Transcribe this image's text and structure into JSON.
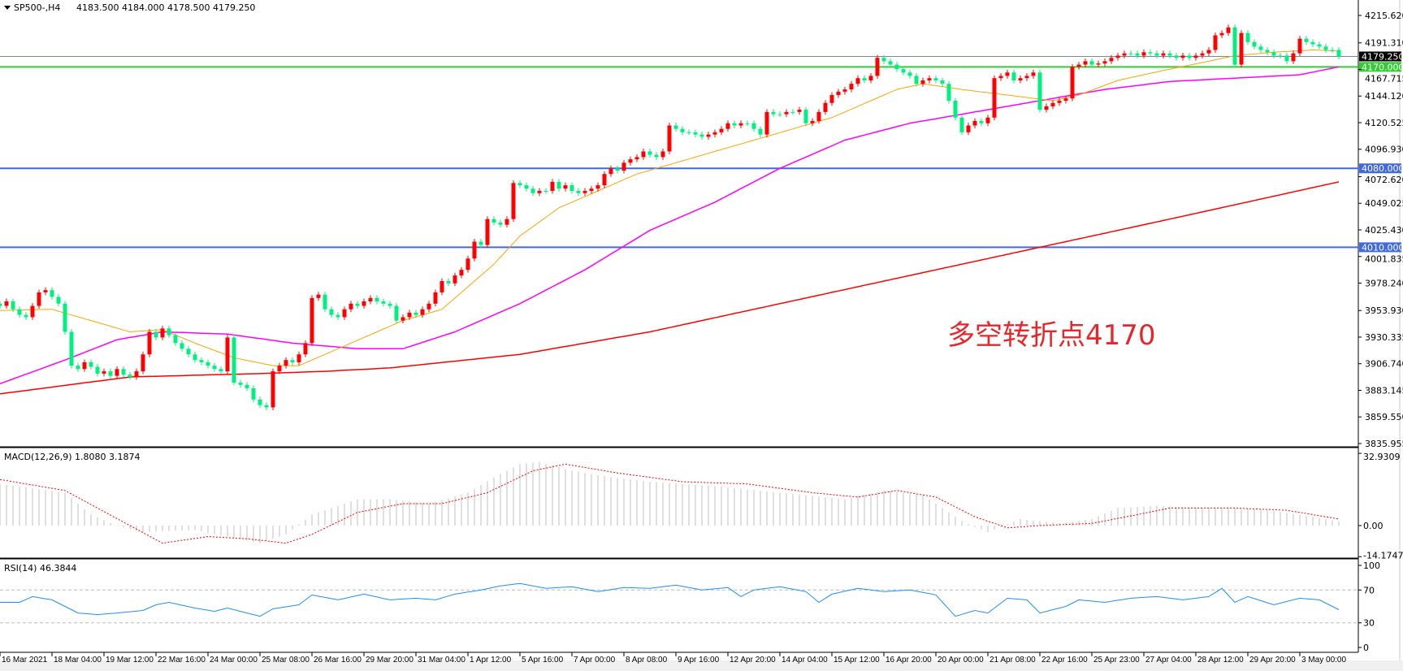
{
  "header": {
    "symbol": "SP500-,H4",
    "ohlc": "4183.500 4184.000 4178.500 4179.250"
  },
  "annotation": "多空转折点4170",
  "colors": {
    "bull": "#ff0000",
    "bear": "#00f080",
    "ma_fast": "#ffa500",
    "ma_mid": "#ff00ff",
    "ma_slow": "#ff0000",
    "level_green": "#32cd32",
    "level_blue": "#4169e1",
    "bid_line": "#778899",
    "macd_hist": "#c0c0c0",
    "macd_signal": "#ff0000",
    "rsi": "#1e90ff"
  },
  "chart_data": [
    {
      "type": "candlestick",
      "title": "SP500-,H4",
      "price_axis_ticks": [
        "4215.620",
        "4191.310",
        "4167.715",
        "4144.120",
        "4120.525",
        "4096.930",
        "4072.620",
        "4049.025",
        "4025.430",
        "4001.835",
        "3978.240",
        "3953.930",
        "3930.335",
        "3906.740",
        "3883.145",
        "3859.550",
        "3835.955"
      ],
      "ylim": [
        3835.955,
        4215.62
      ],
      "time_axis_labels": [
        "16 Mar 2021",
        "18 Mar 04:00",
        "19 Mar 12:00",
        "22 Mar 16:00",
        "24 Mar 00:00",
        "25 Mar 08:00",
        "26 Mar 16:00",
        "29 Mar 20:00",
        "31 Mar 04:00",
        "1 Apr 12:00",
        "5 Apr 16:00",
        "7 Apr 00:00",
        "8 Apr 08:00",
        "9 Apr 16:00",
        "12 Apr 20:00",
        "14 Apr 04:00",
        "15 Apr 12:00",
        "16 Apr 20:00",
        "20 Apr 00:00",
        "21 Apr 08:00",
        "22 Apr 16:00",
        "25 Apr 23:00",
        "27 Apr 04:00",
        "28 Apr 12:00",
        "29 Apr 20:00",
        "3 May 00:00"
      ],
      "close": [
        3958,
        3962,
        3955,
        3950,
        3948,
        3958,
        3970,
        3972,
        3966,
        3960,
        3935,
        3905,
        3902,
        3908,
        3904,
        3898,
        3900,
        3896,
        3902,
        3897,
        3895,
        3900,
        3915,
        3935,
        3930,
        3938,
        3932,
        3925,
        3920,
        3915,
        3910,
        3908,
        3905,
        3902,
        3900,
        3930,
        3890,
        3888,
        3885,
        3875,
        3870,
        3868,
        3900,
        3905,
        3910,
        3908,
        3915,
        3925,
        3965,
        3968,
        3955,
        3950,
        3948,
        3955,
        3960,
        3958,
        3962,
        3965,
        3962,
        3960,
        3958,
        3945,
        3948,
        3952,
        3950,
        3955,
        3960,
        3970,
        3980,
        3978,
        3985,
        3990,
        4000,
        4015,
        4012,
        4035,
        4032,
        4030,
        4035,
        4067,
        4065,
        4062,
        4058,
        4060,
        4060,
        4068,
        4062,
        4065,
        4060,
        4058,
        4060,
        4062,
        4065,
        4075,
        4080,
        4078,
        4085,
        4088,
        4090,
        4095,
        4092,
        4090,
        4095,
        4118,
        4115,
        4112,
        4112,
        4110,
        4108,
        4110,
        4112,
        4115,
        4120,
        4118,
        4120,
        4120,
        4115,
        4110,
        4130,
        4128,
        4128,
        4130,
        4130,
        4132,
        4120,
        4122,
        4130,
        4138,
        4145,
        4148,
        4150,
        4155,
        4160,
        4158,
        4162,
        4178,
        4175,
        4172,
        4168,
        4165,
        4162,
        4155,
        4158,
        4160,
        4158,
        4155,
        4140,
        4125,
        4112,
        4118,
        4122,
        4120,
        4125,
        4160,
        4162,
        4165,
        4158,
        4160,
        4162,
        4165,
        4132,
        4135,
        4138,
        4140,
        4142,
        4170,
        4172,
        4175,
        4172,
        4173,
        4175,
        4178,
        4180,
        4182,
        4182,
        4180,
        4183,
        4182,
        4180,
        4182,
        4180,
        4178,
        4180,
        4178,
        4180,
        4182,
        4185,
        4198,
        4200,
        4205,
        4172,
        4200,
        4192,
        4188,
        4185,
        4183,
        4180,
        4180,
        4175,
        4182,
        4195,
        4192,
        4190,
        4188,
        4185,
        4185,
        4179.25
      ],
      "moving_averages": {
        "fast": [
          [
            0,
            3954
          ],
          [
            8,
            3955
          ],
          [
            14,
            3945
          ],
          [
            20,
            3935
          ],
          [
            25,
            3937
          ],
          [
            30,
            3925
          ],
          [
            36,
            3912
          ],
          [
            42,
            3905
          ],
          [
            46,
            3905
          ],
          [
            50,
            3915
          ],
          [
            56,
            3930
          ],
          [
            62,
            3945
          ],
          [
            68,
            3955
          ],
          [
            72,
            3975
          ],
          [
            76,
            3995
          ],
          [
            80,
            4020
          ],
          [
            86,
            4045
          ],
          [
            92,
            4060
          ],
          [
            98,
            4075
          ],
          [
            104,
            4085
          ],
          [
            110,
            4095
          ],
          [
            116,
            4105
          ],
          [
            122,
            4115
          ],
          [
            128,
            4125
          ],
          [
            134,
            4140
          ],
          [
            138,
            4150
          ],
          [
            142,
            4155
          ],
          [
            148,
            4150
          ],
          [
            155,
            4145
          ],
          [
            162,
            4140
          ],
          [
            166,
            4145
          ],
          [
            172,
            4158
          ],
          [
            180,
            4168
          ],
          [
            186,
            4175
          ],
          [
            190,
            4180
          ],
          [
            196,
            4183
          ],
          [
            202,
            4185
          ],
          [
            206,
            4184
          ]
        ],
        "mid": [
          [
            0,
            3889
          ],
          [
            10,
            3910
          ],
          [
            18,
            3928
          ],
          [
            25,
            3935
          ],
          [
            35,
            3933
          ],
          [
            45,
            3925
          ],
          [
            55,
            3920
          ],
          [
            62,
            3920
          ],
          [
            70,
            3935
          ],
          [
            80,
            3960
          ],
          [
            90,
            3990
          ],
          [
            100,
            4025
          ],
          [
            110,
            4050
          ],
          [
            120,
            4080
          ],
          [
            130,
            4105
          ],
          [
            140,
            4120
          ],
          [
            150,
            4130
          ],
          [
            160,
            4140
          ],
          [
            170,
            4150
          ],
          [
            180,
            4157
          ],
          [
            190,
            4160
          ],
          [
            200,
            4163
          ],
          [
            206,
            4170
          ]
        ],
        "slow": [
          [
            0,
            3880
          ],
          [
            20,
            3895
          ],
          [
            40,
            3898
          ],
          [
            50,
            3900
          ],
          [
            60,
            3903
          ],
          [
            80,
            3915
          ],
          [
            100,
            3935
          ],
          [
            120,
            3960
          ],
          [
            140,
            3985
          ],
          [
            160,
            4010
          ],
          [
            180,
            4035
          ],
          [
            206,
            4068
          ]
        ]
      },
      "levels": [
        {
          "value": 4179.25,
          "label": "4179.250",
          "kind": "bid"
        },
        {
          "value": 4170.0,
          "label": "4170.000",
          "kind": "green"
        },
        {
          "value": 4080.0,
          "label": "4080.000",
          "kind": "blue"
        },
        {
          "value": 4010.0,
          "label": "4010.000",
          "kind": "blue"
        }
      ]
    },
    {
      "type": "bar+line",
      "title": "MACD(12,26,9) 1.8080 3.1874",
      "axis_ticks": [
        "32.9309",
        "0.00",
        "-14.1747"
      ],
      "ylim": [
        -14.1747,
        32.9309
      ],
      "histogram": [
        [
          0,
          19
        ],
        [
          10,
          15
        ],
        [
          14,
          5
        ],
        [
          18,
          0
        ],
        [
          22,
          -3
        ],
        [
          30,
          -2
        ],
        [
          40,
          -8
        ],
        [
          44,
          -4
        ],
        [
          48,
          5
        ],
        [
          55,
          12
        ],
        [
          60,
          12
        ],
        [
          66,
          10
        ],
        [
          72,
          15
        ],
        [
          76,
          22
        ],
        [
          80,
          28
        ],
        [
          83,
          29
        ],
        [
          88,
          25
        ],
        [
          94,
          22
        ],
        [
          100,
          20
        ],
        [
          110,
          18
        ],
        [
          120,
          15
        ],
        [
          130,
          12
        ],
        [
          136,
          16
        ],
        [
          142,
          14
        ],
        [
          148,
          2
        ],
        [
          152,
          -3
        ],
        [
          157,
          3
        ],
        [
          163,
          1
        ],
        [
          168,
          3
        ],
        [
          172,
          8
        ],
        [
          178,
          9
        ],
        [
          185,
          8
        ],
        [
          190,
          8
        ],
        [
          195,
          7
        ],
        [
          200,
          5
        ],
        [
          206,
          2
        ]
      ],
      "signal": [
        [
          0,
          21
        ],
        [
          10,
          16
        ],
        [
          20,
          0
        ],
        [
          25,
          -8
        ],
        [
          32,
          -5
        ],
        [
          38,
          -6
        ],
        [
          44,
          -8
        ],
        [
          48,
          -4
        ],
        [
          55,
          6
        ],
        [
          62,
          10
        ],
        [
          68,
          10
        ],
        [
          75,
          15
        ],
        [
          82,
          25
        ],
        [
          87,
          28
        ],
        [
          95,
          24
        ],
        [
          105,
          20
        ],
        [
          115,
          19
        ],
        [
          125,
          15
        ],
        [
          132,
          13
        ],
        [
          138,
          16
        ],
        [
          144,
          13
        ],
        [
          150,
          4
        ],
        [
          155,
          -1
        ],
        [
          160,
          0
        ],
        [
          168,
          1
        ],
        [
          175,
          5
        ],
        [
          180,
          8
        ],
        [
          190,
          8
        ],
        [
          198,
          7
        ],
        [
          206,
          3
        ]
      ]
    },
    {
      "type": "line",
      "title": "RSI(14) 46.3844",
      "axis_ticks": [
        "100",
        "70",
        "30",
        "0"
      ],
      "ylim": [
        0,
        100
      ],
      "levels": [
        70,
        30
      ],
      "values": [
        [
          0,
          55
        ],
        [
          3,
          55
        ],
        [
          5,
          62
        ],
        [
          8,
          58
        ],
        [
          10,
          50
        ],
        [
          12,
          42
        ],
        [
          15,
          40
        ],
        [
          18,
          42
        ],
        [
          22,
          45
        ],
        [
          24,
          52
        ],
        [
          26,
          55
        ],
        [
          30,
          48
        ],
        [
          33,
          44
        ],
        [
          35,
          48
        ],
        [
          38,
          42
        ],
        [
          40,
          38
        ],
        [
          42,
          47
        ],
        [
          46,
          52
        ],
        [
          48,
          64
        ],
        [
          52,
          58
        ],
        [
          56,
          65
        ],
        [
          60,
          58
        ],
        [
          64,
          60
        ],
        [
          67,
          58
        ],
        [
          70,
          65
        ],
        [
          74,
          70
        ],
        [
          77,
          75
        ],
        [
          80,
          78
        ],
        [
          84,
          72
        ],
        [
          88,
          74
        ],
        [
          92,
          68
        ],
        [
          96,
          73
        ],
        [
          100,
          72
        ],
        [
          104,
          76
        ],
        [
          108,
          70
        ],
        [
          112,
          73
        ],
        [
          114,
          62
        ],
        [
          116,
          70
        ],
        [
          120,
          74
        ],
        [
          124,
          68
        ],
        [
          126,
          55
        ],
        [
          128,
          65
        ],
        [
          132,
          72
        ],
        [
          136,
          68
        ],
        [
          140,
          70
        ],
        [
          144,
          64
        ],
        [
          147,
          38
        ],
        [
          150,
          45
        ],
        [
          152,
          42
        ],
        [
          155,
          60
        ],
        [
          158,
          58
        ],
        [
          160,
          42
        ],
        [
          164,
          50
        ],
        [
          166,
          58
        ],
        [
          170,
          55
        ],
        [
          174,
          60
        ],
        [
          178,
          62
        ],
        [
          182,
          58
        ],
        [
          186,
          62
        ],
        [
          188,
          72
        ],
        [
          190,
          55
        ],
        [
          192,
          62
        ],
        [
          196,
          52
        ],
        [
          200,
          60
        ],
        [
          203,
          58
        ],
        [
          206,
          46
        ]
      ]
    }
  ]
}
